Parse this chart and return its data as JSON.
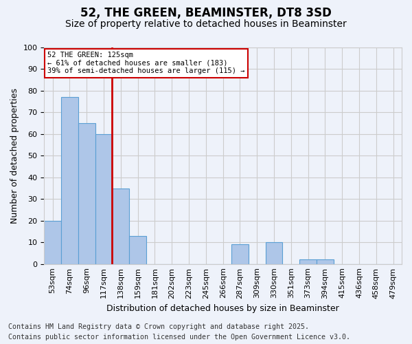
{
  "title": "52, THE GREEN, BEAMINSTER, DT8 3SD",
  "subtitle": "Size of property relative to detached houses in Beaminster",
  "xlabel": "Distribution of detached houses by size in Beaminster",
  "ylabel": "Number of detached properties",
  "bin_labels": [
    "53sqm",
    "74sqm",
    "96sqm",
    "117sqm",
    "138sqm",
    "159sqm",
    "181sqm",
    "202sqm",
    "223sqm",
    "245sqm",
    "266sqm",
    "287sqm",
    "309sqm",
    "330sqm",
    "351sqm",
    "373sqm",
    "394sqm",
    "415sqm",
    "436sqm",
    "458sqm",
    "479sqm"
  ],
  "bar_values": [
    20,
    77,
    65,
    60,
    35,
    13,
    0,
    0,
    0,
    0,
    0,
    9,
    0,
    10,
    0,
    2,
    2,
    0,
    0,
    0,
    0
  ],
  "bar_color": "#aec6e8",
  "bar_edgecolor": "#5a9fd4",
  "bar_linewidth": 0.8,
  "red_line_x": 3.5,
  "red_line_color": "#cc0000",
  "annotation_text": "52 THE GREEN: 125sqm\n← 61% of detached houses are smaller (183)\n39% of semi-detached houses are larger (115) →",
  "annotation_box_color": "#ffffff",
  "annotation_box_edgecolor": "#cc0000",
  "ylim": [
    0,
    100
  ],
  "yticks": [
    0,
    10,
    20,
    30,
    40,
    50,
    60,
    70,
    80,
    90,
    100
  ],
  "grid_color": "#cccccc",
  "background_color": "#eef2fa",
  "footnote1": "Contains HM Land Registry data © Crown copyright and database right 2025.",
  "footnote2": "Contains public sector information licensed under the Open Government Licence v3.0.",
  "title_fontsize": 12,
  "subtitle_fontsize": 10,
  "label_fontsize": 9,
  "tick_fontsize": 8,
  "footnote_fontsize": 7.2
}
